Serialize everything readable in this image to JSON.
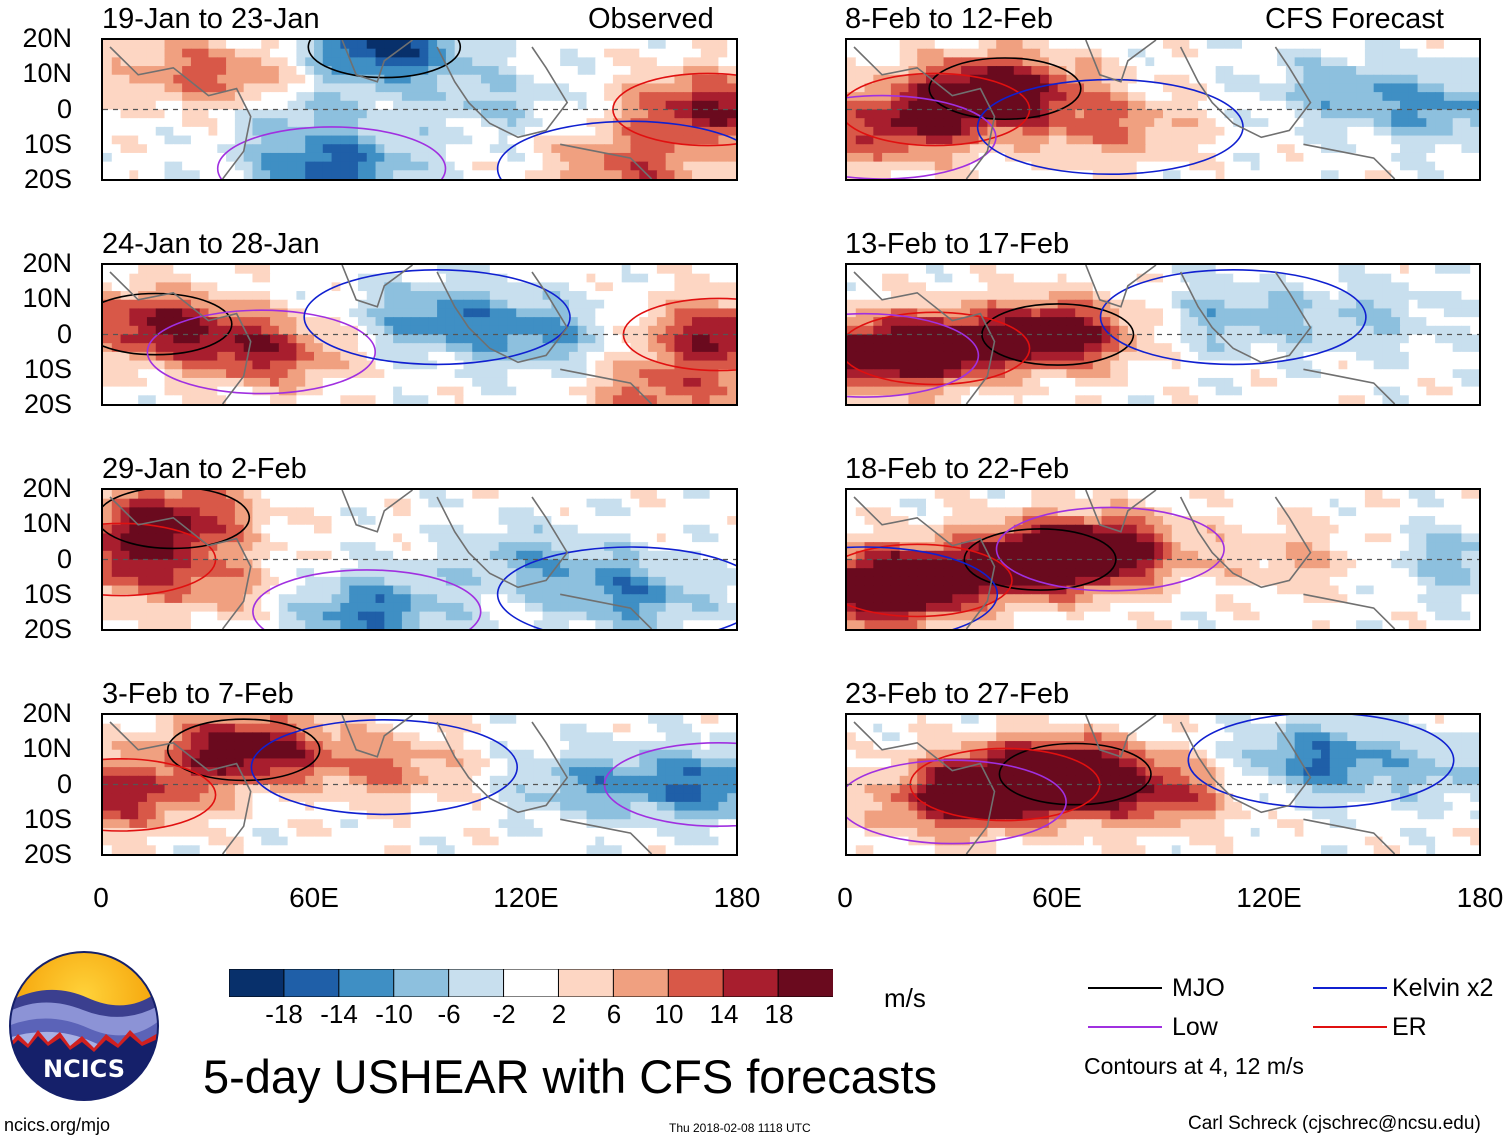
{
  "chart_data": {
    "type": "heatmap",
    "title": "5-day USHEAR with CFS forecasts",
    "variable": "USHEAR",
    "units": "m/s",
    "column_headers": [
      "Observed",
      "CFS Forecast"
    ],
    "x_ticks": [
      "0",
      "60E",
      "120E",
      "180"
    ],
    "xlim": [
      0,
      180
    ],
    "y_ticks": [
      "20N",
      "10N",
      "0",
      "10S",
      "20S"
    ],
    "ylim": [
      -20,
      20
    ],
    "panels": [
      {
        "period": "19-Jan to 23-Jan",
        "source": "Observed",
        "centers": [
          [
            172,
            0,
            18
          ],
          [
            40,
            8,
            10
          ],
          [
            20,
            12,
            6
          ],
          [
            80,
            18,
            -20
          ],
          [
            65,
            -17,
            -16
          ],
          [
            55,
            0,
            -8
          ],
          [
            110,
            2,
            -6
          ],
          [
            150,
            -17,
            12
          ]
        ]
      },
      {
        "period": "8-Feb to 12-Feb",
        "source": "CFS Forecast",
        "centers": [
          [
            45,
            6,
            20
          ],
          [
            25,
            0,
            14
          ],
          [
            10,
            -8,
            10
          ],
          [
            75,
            -5,
            10
          ],
          [
            140,
            6,
            -8
          ],
          [
            170,
            0,
            -10
          ]
        ]
      },
      {
        "period": "24-Jan to 28-Jan",
        "source": "Observed",
        "centers": [
          [
            15,
            3,
            18
          ],
          [
            45,
            -5,
            16
          ],
          [
            175,
            0,
            18
          ],
          [
            95,
            5,
            -12
          ],
          [
            125,
            0,
            -10
          ],
          [
            160,
            -17,
            12
          ]
        ]
      },
      {
        "period": "13-Feb to 17-Feb",
        "source": "CFS Forecast",
        "centers": [
          [
            25,
            -4,
            20
          ],
          [
            60,
            0,
            22
          ],
          [
            5,
            -6,
            16
          ],
          [
            110,
            5,
            -8
          ],
          [
            150,
            5,
            -6
          ]
        ]
      },
      {
        "period": "29-Jan to 2-Feb",
        "source": "Observed",
        "centers": [
          [
            20,
            12,
            18
          ],
          [
            5,
            0,
            14
          ],
          [
            30,
            -8,
            8
          ],
          [
            120,
            0,
            -8
          ],
          [
            150,
            -10,
            -12
          ],
          [
            75,
            -15,
            -14
          ]
        ]
      },
      {
        "period": "18-Feb to 22-Feb",
        "source": "CFS Forecast",
        "centers": [
          [
            20,
            -6,
            20
          ],
          [
            55,
            0,
            22
          ],
          [
            75,
            3,
            18
          ],
          [
            5,
            -10,
            16
          ],
          [
            130,
            0,
            6
          ],
          [
            175,
            0,
            -8
          ]
        ]
      },
      {
        "period": "3-Feb to 7-Feb",
        "source": "Observed",
        "centers": [
          [
            40,
            10,
            22
          ],
          [
            5,
            -3,
            16
          ],
          [
            80,
            5,
            10
          ],
          [
            140,
            0,
            -10
          ],
          [
            175,
            0,
            -14
          ]
        ]
      },
      {
        "period": "23-Feb to 27-Feb",
        "source": "CFS Forecast",
        "centers": [
          [
            45,
            0,
            20
          ],
          [
            65,
            3,
            22
          ],
          [
            30,
            -5,
            14
          ],
          [
            90,
            -3,
            12
          ],
          [
            135,
            7,
            -14
          ],
          [
            175,
            3,
            -6
          ]
        ]
      }
    ],
    "colorbar": {
      "ticks": [
        "-18",
        "-14",
        "-10",
        "-6",
        "-2",
        "2",
        "6",
        "10",
        "14",
        "18"
      ],
      "colors": [
        "#08306b",
        "#1f5fa8",
        "#3f8fc4",
        "#8dc0de",
        "#c8dfee",
        "#ffffff",
        "#fdd6c3",
        "#f0a080",
        "#d85848",
        "#a81e2e",
        "#6a0a1e"
      ]
    },
    "legend": [
      {
        "label": "MJO",
        "color": "#000000"
      },
      {
        "label": "Kelvin x2",
        "color": "#1020d0"
      },
      {
        "label": "Low",
        "color": "#a030e0"
      },
      {
        "label": "ER",
        "color": "#e01010"
      }
    ],
    "contour_note": "Contours at 4, 12 m/s"
  },
  "org": {
    "logo_text": "NCICS",
    "url": "ncics.org/mjo"
  },
  "timestamp": "Thu 2018-02-08 1118 UTC",
  "credit": "Carl Schreck (cjschrec@ncsu.edu)"
}
